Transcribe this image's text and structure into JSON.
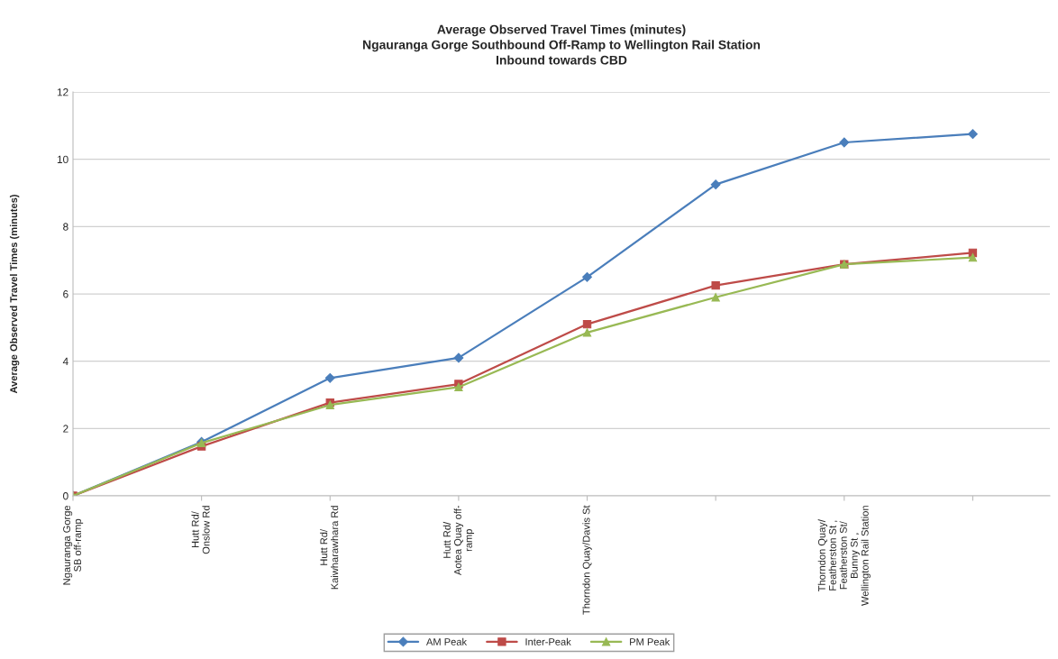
{
  "chart_data": {
    "type": "line",
    "title": "Average Observed Travel Times (minutes)\nNgauranga Gorge Southbound Off-Ramp to Wellington Rail Station\nInbound towards CBD",
    "ylabel": "Average Observed Travel Times (minutes)",
    "categories": [
      "Ngauranga Gorge\nSB off-ramp",
      "Hutt Rd/\nOnslow Rd",
      "Hutt Rd/\nKaiwharawhara Rd",
      "Hutt Rd/\nAotea Quay off-\nramp",
      "Thorndon Quay/Davis St",
      null,
      "Thorndon Quay/\nFeatherston St ,\nFeatherston St/\nBunny St ,\nWellington Rail Station",
      null
    ],
    "series": [
      {
        "name": "AM Peak",
        "color": "#4a7ebb",
        "marker": "diamond",
        "values": [
          0,
          1.6,
          3.5,
          4.1,
          6.5,
          9.25,
          10.5,
          10.75
        ]
      },
      {
        "name": "Inter-Peak",
        "color": "#be4b48",
        "marker": "square",
        "values": [
          0,
          1.47,
          2.77,
          3.32,
          5.1,
          6.25,
          6.88,
          7.22
        ]
      },
      {
        "name": "PM Peak",
        "color": "#98b954",
        "marker": "triangle",
        "values": [
          0,
          1.57,
          2.7,
          3.23,
          4.85,
          5.9,
          6.88,
          7.08
        ]
      }
    ],
    "ylim": [
      0,
      12
    ],
    "yticks": [
      0,
      2,
      4,
      6,
      8,
      10,
      12
    ],
    "grid": "y",
    "legend": "bottom",
    "line_style": "solid"
  }
}
